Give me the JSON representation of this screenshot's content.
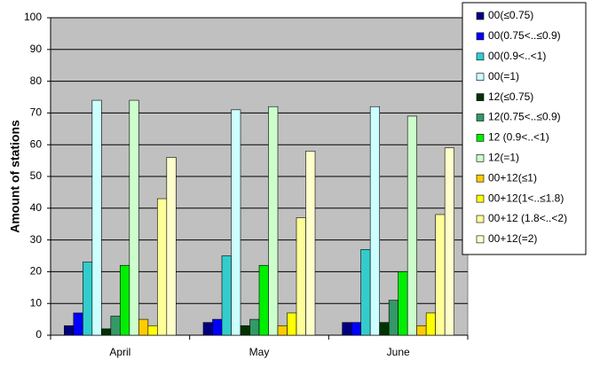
{
  "chart_data": {
    "type": "bar",
    "y_label": "Amount of stations",
    "categories": [
      "April",
      "May",
      "June"
    ],
    "ylim": [
      0,
      100
    ],
    "yticks": [
      0,
      10,
      20,
      30,
      40,
      50,
      60,
      70,
      80,
      90,
      100
    ],
    "grid": true,
    "legend": "right",
    "series": [
      {
        "name": "00(≤0.75)",
        "color": "#000080",
        "values": [
          3,
          4,
          4
        ]
      },
      {
        "name": "00(0.75<..≤0.9)",
        "color": "#0000ff",
        "values": [
          7,
          5,
          4
        ]
      },
      {
        "name": "00(0.9<..<1)",
        "color": "#33cccc",
        "values": [
          23,
          25,
          27
        ]
      },
      {
        "name": "00(=1)",
        "color": "#ccffff",
        "values": [
          74,
          71,
          72
        ]
      },
      {
        "name": "12(≤0.75)",
        "color": "#003300",
        "values": [
          2,
          3,
          4
        ]
      },
      {
        "name": "12(0.75<..≤0.9)",
        "color": "#339966",
        "values": [
          6,
          5,
          11
        ]
      },
      {
        "name": "12 (0.9<..<1)",
        "color": "#00ee00",
        "values": [
          22,
          22,
          20
        ]
      },
      {
        "name": "12(=1)",
        "color": "#ccffcc",
        "values": [
          74,
          72,
          69
        ]
      },
      {
        "name": "00+12(≤1)",
        "color": "#ffcc00",
        "values": [
          5,
          3,
          3
        ]
      },
      {
        "name": "00+12(1<..≤1.8)",
        "color": "#ffff00",
        "values": [
          3,
          7,
          7
        ]
      },
      {
        "name": "00+12 (1.8<..<2)",
        "color": "#ffff99",
        "values": [
          43,
          37,
          38
        ]
      },
      {
        "name": "00+12(=2)",
        "color": "#ffffcc",
        "values": [
          56,
          58,
          59
        ]
      }
    ]
  }
}
